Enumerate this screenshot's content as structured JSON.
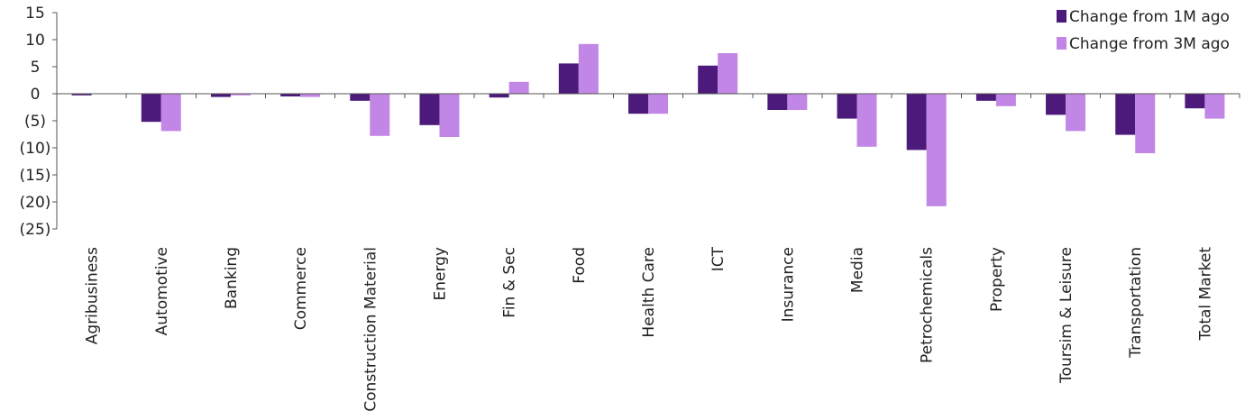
{
  "chart_data": {
    "type": "bar",
    "title": "",
    "xlabel": "",
    "ylabel": "",
    "ylim": [
      -25,
      15
    ],
    "yticks": [
      15,
      10,
      5,
      0,
      -5,
      -10,
      -15,
      -20,
      -25
    ],
    "ytick_labels": [
      "15",
      "10",
      "5",
      "0",
      "(5)",
      "(10)",
      "(15)",
      "(20)",
      "(25)"
    ],
    "grid": false,
    "legend_position": "top-right",
    "categories": [
      "Agribusiness",
      "Automotive",
      "Banking",
      "Commerce",
      "Construction Material",
      "Energy",
      "Fin & Sec",
      "Food",
      "Health Care",
      "ICT",
      "Insurance",
      "Media",
      "Petrochemicals",
      "Property",
      "Toursim & Leisure",
      "Transportation",
      "Total Market"
    ],
    "series": [
      {
        "name": "Change from 1M ago",
        "color": "#4b1a7a",
        "values": [
          -0.3,
          -5.2,
          -0.6,
          -0.5,
          -1.3,
          -5.8,
          -0.7,
          5.6,
          -3.7,
          5.2,
          -3.0,
          -4.6,
          -10.4,
          -1.3,
          -3.9,
          -7.6,
          -2.7
        ]
      },
      {
        "name": "Change from 3M ago",
        "color": "#c286e6",
        "values": [
          0.0,
          -6.9,
          -0.3,
          -0.6,
          -7.8,
          -8.0,
          2.2,
          9.2,
          -3.7,
          7.5,
          -3.0,
          -9.8,
          -20.8,
          -2.3,
          -6.9,
          -11.0,
          -4.6
        ]
      }
    ]
  }
}
